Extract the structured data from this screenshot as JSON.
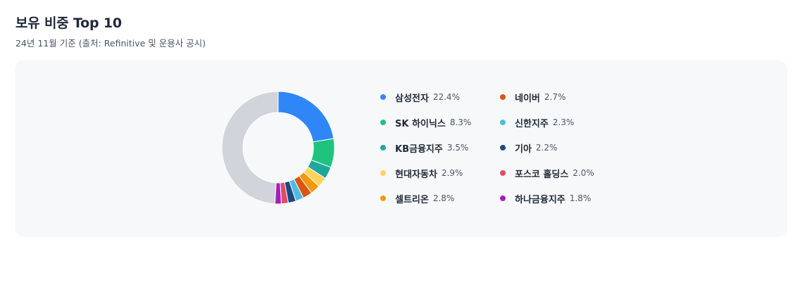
{
  "header": {
    "title": "보유 비중 Top 10",
    "subtitle": "24년 11월 기준 (출처: Refinitive 및 운용사 공시)"
  },
  "chart_data": {
    "type": "pie",
    "categories": [
      "삼성전자",
      "SK 하이닉스",
      "KB금융지주",
      "현대자동차",
      "셀트리온",
      "네이버",
      "신한지주",
      "기아",
      "포스코 홀딩스",
      "하나금융지주"
    ],
    "values": [
      22.4,
      8.3,
      3.5,
      2.9,
      2.8,
      2.7,
      2.3,
      2.2,
      2.0,
      1.8
    ],
    "value_labels": [
      "22.4%",
      "8.3%",
      "3.5%",
      "2.9%",
      "2.8%",
      "2.7%",
      "2.3%",
      "2.2%",
      "2.0%",
      "1.8%"
    ],
    "unit": "%",
    "colors": [
      "#2f86f6",
      "#1ec47e",
      "#1fa89a",
      "#fcd45c",
      "#f4980f",
      "#dd5512",
      "#4fbbe3",
      "#1b4a7e",
      "#e04b6b",
      "#a31fbb"
    ],
    "remainder_color": "#d1d5db",
    "legend_position": "right"
  }
}
